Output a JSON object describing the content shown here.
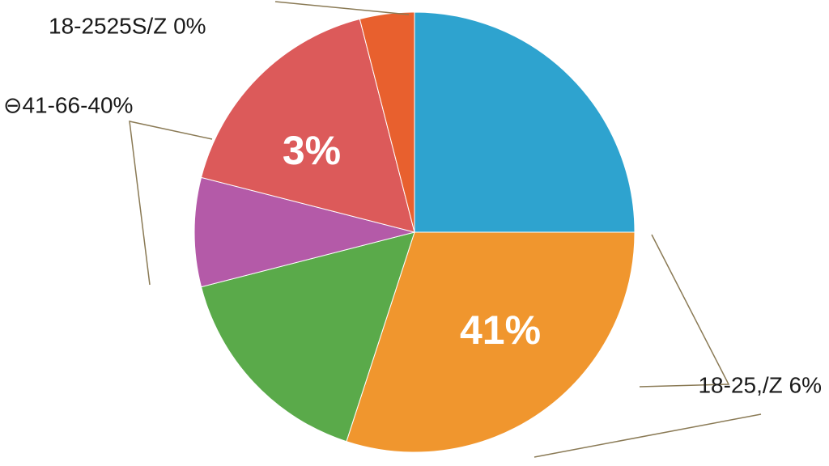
{
  "chart_data": {
    "type": "pie",
    "categories": [
      null,
      null,
      null,
      null,
      null,
      null
    ],
    "values": [
      25,
      30,
      16,
      8,
      17,
      4
    ],
    "colors": [
      "#2ea3cf",
      "#f0962e",
      "#5aaa4a",
      "#b45aa8",
      "#dc5a5a",
      "#e8602e"
    ],
    "annotations": [
      "18-2525S/Z 0%",
      "⊖41-66-40%",
      "3%",
      "41%",
      "18-25,/Z 6%"
    ]
  }
}
